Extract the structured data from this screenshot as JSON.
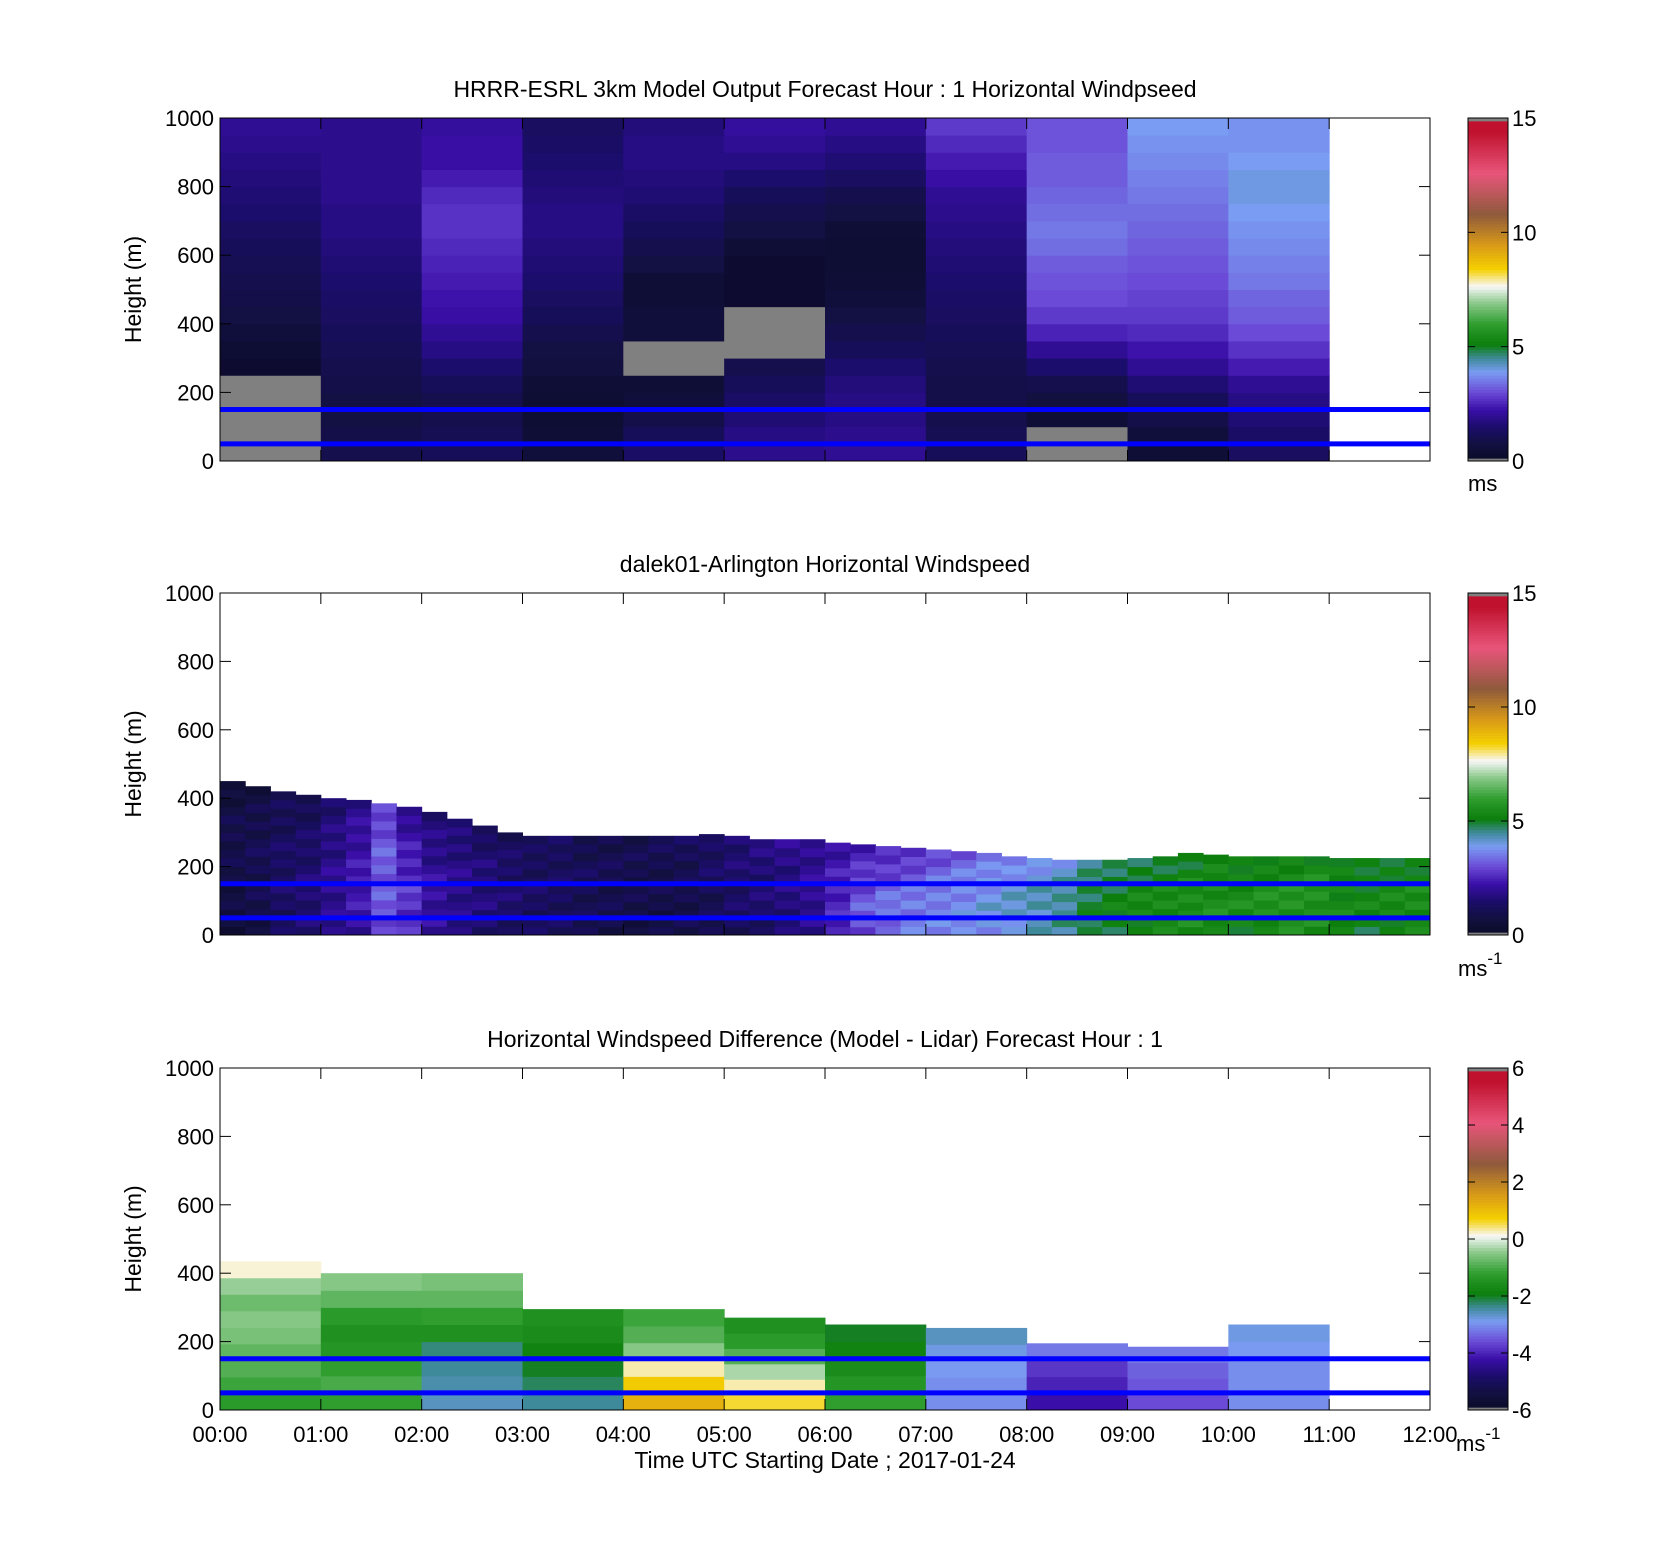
{
  "figure": {
    "xlabel": "Time UTC  Starting Date ; 2017-01-24",
    "xticks": [
      "00:00",
      "01:00",
      "02:00",
      "03:00",
      "04:00",
      "05:00",
      "06:00",
      "07:00",
      "08:00",
      "09:00",
      "10:00",
      "11:00",
      "12:00"
    ]
  },
  "colors": {
    "reference_line": "#0000ff",
    "missing": "#808080"
  },
  "chart_data": [
    {
      "type": "heatmap",
      "title": "HRRR-ESRL 3km Model Output   Forecast Hour : 1 Horizontal Windpseed",
      "ylabel": "Height (m)",
      "ylim": [
        0,
        1000
      ],
      "yticks": [
        "0",
        "200",
        "400",
        "600",
        "800",
        "1000"
      ],
      "xlim_hours": [
        0,
        12
      ],
      "colorbar": {
        "range": [
          0,
          15
        ],
        "ticks": [
          "0",
          "5",
          "10",
          "15"
        ],
        "unit": "ms"
      },
      "reference_lines_m": [
        150,
        50
      ],
      "heights_m": [
        25,
        75,
        125,
        175,
        225,
        275,
        325,
        375,
        425,
        475,
        525,
        575,
        625,
        675,
        725,
        775,
        825,
        875,
        925,
        975
      ],
      "columns": [
        {
          "hour": "00:00",
          "values": [
            null,
            null,
            null,
            null,
            null,
            0.3,
            0.4,
            0.6,
            0.8,
            0.9,
            1.0,
            1.1,
            1.2,
            1.3,
            1.5,
            1.6,
            1.7,
            1.8,
            1.9,
            2.0
          ]
        },
        {
          "hour": "01:00",
          "values": [
            1.0,
            0.9,
            0.8,
            0.8,
            0.9,
            1.0,
            1.1,
            1.2,
            1.3,
            1.4,
            1.5,
            1.6,
            1.7,
            1.8,
            1.8,
            1.9,
            1.9,
            1.9,
            1.9,
            1.9
          ]
        },
        {
          "hour": "02:00",
          "values": [
            1.2,
            1.1,
            1.0,
            1.0,
            1.2,
            1.5,
            1.8,
            2.0,
            2.2,
            2.3,
            2.4,
            2.5,
            2.6,
            2.7,
            2.7,
            2.6,
            2.4,
            2.2,
            2.2,
            2.1
          ]
        },
        {
          "hour": "03:00",
          "values": [
            0.6,
            0.5,
            0.4,
            0.4,
            0.5,
            0.7,
            0.8,
            1.0,
            1.2,
            1.3,
            1.5,
            1.6,
            1.7,
            1.8,
            1.8,
            1.7,
            1.6,
            1.5,
            1.4,
            1.3
          ]
        },
        {
          "hour": "04:00",
          "values": [
            1.4,
            1.2,
            0.9,
            0.6,
            0.5,
            null,
            null,
            0.6,
            0.6,
            0.5,
            0.5,
            0.8,
            1.0,
            1.2,
            1.4,
            1.6,
            1.7,
            1.8,
            1.8,
            1.7
          ]
        },
        {
          "hour": "05:00",
          "values": [
            1.9,
            1.8,
            1.6,
            1.4,
            1.2,
            1.0,
            null,
            null,
            null,
            0.3,
            0.3,
            0.3,
            0.5,
            0.8,
            1.0,
            1.2,
            1.5,
            1.8,
            2.0,
            2.1
          ]
        },
        {
          "hour": "06:00",
          "values": [
            2.0,
            1.9,
            1.8,
            1.8,
            1.7,
            1.5,
            1.2,
            1.0,
            0.8,
            0.6,
            0.5,
            0.4,
            0.4,
            0.5,
            0.8,
            1.0,
            1.3,
            1.6,
            1.8,
            2.0
          ]
        },
        {
          "hour": "07:00",
          "values": [
            1.2,
            1.1,
            1.0,
            0.9,
            0.9,
            1.0,
            1.1,
            1.2,
            1.3,
            1.4,
            1.5,
            1.6,
            1.7,
            1.8,
            1.9,
            2.0,
            2.2,
            2.4,
            2.6,
            2.8
          ]
        },
        {
          "hour": "08:00",
          "values": [
            null,
            null,
            0.5,
            0.7,
            1.0,
            1.5,
            2.0,
            2.5,
            2.8,
            3.0,
            3.1,
            3.2,
            3.4,
            3.5,
            3.4,
            3.3,
            3.2,
            3.2,
            3.1,
            3.1
          ]
        },
        {
          "hour": "09:00",
          "values": [
            0.5,
            0.6,
            0.9,
            1.2,
            1.6,
            2.0,
            2.3,
            2.6,
            2.8,
            2.9,
            3.0,
            3.1,
            3.2,
            3.3,
            3.4,
            3.5,
            3.6,
            3.7,
            3.8,
            3.9
          ]
        },
        {
          "hour": "10:00",
          "values": [
            1.3,
            1.4,
            1.6,
            1.8,
            2.0,
            2.4,
            2.7,
            3.0,
            3.2,
            3.3,
            3.5,
            3.6,
            3.7,
            3.8,
            3.9,
            4.0,
            4.0,
            3.9,
            3.8,
            3.8
          ]
        }
      ]
    },
    {
      "type": "heatmap",
      "title": "dalek01-Arlington  Horizontal Windspeed",
      "ylabel": "Height (m)",
      "ylim": [
        0,
        1000
      ],
      "yticks": [
        "0",
        "200",
        "400",
        "600",
        "800",
        "1000"
      ],
      "xlim_hours": [
        0,
        12
      ],
      "colorbar": {
        "range": [
          0,
          15
        ],
        "ticks": [
          "0",
          "5",
          "10",
          "15"
        ],
        "unit": "ms",
        "unit_exp": "-1"
      },
      "reference_lines_m": [
        150,
        50
      ],
      "profile_time_step_hours": 0.25,
      "profile_tops_m": [
        450,
        435,
        420,
        410,
        400,
        395,
        385,
        375,
        360,
        340,
        320,
        300,
        290,
        290,
        290,
        290,
        290,
        290,
        290,
        295,
        290,
        280,
        280,
        280,
        270,
        265,
        260,
        255,
        250,
        245,
        240,
        230,
        225,
        220,
        220,
        220,
        225,
        230,
        240,
        235,
        230,
        230,
        230,
        230,
        225,
        225,
        225,
        225
      ],
      "profile_speeds_bottom_top": [
        [
          0.6,
          0.8,
          1.0,
          0.6
        ],
        [
          0.8,
          1.0,
          1.1,
          0.7
        ],
        [
          1.2,
          1.4,
          1.3,
          1.0
        ],
        [
          1.5,
          1.6,
          1.4,
          1.1
        ],
        [
          1.8,
          2.0,
          1.8,
          1.5
        ],
        [
          2.1,
          2.4,
          2.2,
          1.9
        ],
        [
          3.0,
          3.2,
          3.2,
          2.8
        ],
        [
          2.6,
          2.8,
          2.4,
          2.0
        ],
        [
          2.0,
          2.2,
          1.9,
          1.6
        ],
        [
          1.7,
          1.9,
          1.8,
          1.5
        ],
        [
          1.5,
          1.7,
          1.6,
          1.3
        ],
        [
          1.3,
          1.5,
          1.4,
          1.2
        ],
        [
          1.2,
          1.3,
          1.3,
          1.1
        ],
        [
          1.2,
          1.3,
          1.3,
          1.2
        ],
        [
          1.0,
          1.1,
          1.2,
          1.0
        ],
        [
          0.9,
          1.0,
          1.1,
          1.0
        ],
        [
          0.8,
          0.9,
          1.0,
          1.0
        ],
        [
          0.8,
          0.9,
          1.0,
          1.1
        ],
        [
          0.9,
          1.0,
          1.1,
          1.2
        ],
        [
          1.0,
          1.1,
          1.3,
          1.4
        ],
        [
          1.2,
          1.4,
          1.5,
          1.6
        ],
        [
          1.3,
          1.5,
          1.6,
          1.7
        ],
        [
          1.5,
          1.7,
          1.8,
          1.9
        ],
        [
          1.8,
          2.0,
          2.0,
          2.0
        ],
        [
          2.4,
          2.6,
          2.4,
          2.2
        ],
        [
          3.0,
          3.2,
          2.8,
          2.4
        ],
        [
          3.3,
          3.5,
          3.0,
          2.5
        ],
        [
          3.5,
          3.6,
          3.2,
          2.7
        ],
        [
          3.6,
          3.7,
          3.4,
          3.0
        ],
        [
          3.7,
          3.8,
          3.6,
          3.2
        ],
        [
          3.8,
          4.0,
          3.8,
          3.4
        ],
        [
          4.0,
          4.2,
          4.0,
          3.6
        ],
        [
          4.2,
          4.4,
          4.2,
          3.8
        ],
        [
          4.4,
          4.6,
          4.4,
          4.0
        ],
        [
          4.8,
          5.0,
          4.8,
          4.4
        ],
        [
          5.0,
          5.2,
          5.0,
          4.6
        ],
        [
          5.2,
          5.4,
          5.2,
          4.8
        ],
        [
          5.3,
          5.5,
          5.3,
          4.9
        ],
        [
          5.4,
          5.6,
          5.4,
          5.0
        ],
        [
          5.3,
          5.6,
          5.5,
          5.1
        ],
        [
          5.2,
          5.5,
          5.4,
          5.0
        ],
        [
          5.4,
          5.6,
          5.5,
          5.2
        ],
        [
          5.5,
          5.7,
          5.6,
          5.3
        ],
        [
          5.4,
          5.7,
          5.6,
          5.3
        ],
        [
          5.2,
          5.4,
          5.3,
          5.0
        ],
        [
          5.0,
          5.3,
          5.2,
          4.9
        ],
        [
          5.2,
          5.4,
          5.3,
          5.0
        ],
        [
          5.3,
          5.5,
          5.4,
          5.1
        ]
      ]
    },
    {
      "type": "heatmap",
      "title": "Horizontal Windspeed Difference (Model - Lidar) Forecast Hour : 1",
      "ylabel": "Height (m)",
      "ylim": [
        0,
        1000
      ],
      "yticks": [
        "0",
        "200",
        "400",
        "600",
        "800",
        "1000"
      ],
      "xlim_hours": [
        0,
        12
      ],
      "colorbar": {
        "range": [
          -6,
          6
        ],
        "ticks": [
          "-6",
          "-4",
          "-2",
          "0",
          "2",
          "4",
          "6"
        ],
        "unit": "ms",
        "unit_exp": "-1"
      },
      "reference_lines_m": [
        150,
        50
      ],
      "columns": [
        {
          "hour": "00:00",
          "top_m": 435,
          "values_bottom_top": [
            -1.3,
            -1.1,
            -0.9,
            -0.8,
            -0.6,
            -0.5,
            -0.7,
            -0.4,
            0.2
          ]
        },
        {
          "hour": "01:00",
          "top_m": 400,
          "values_bottom_top": [
            -1.2,
            -1.0,
            -1.2,
            -1.4,
            -1.5,
            -1.3,
            -0.8,
            -0.5
          ]
        },
        {
          "hour": "02:00",
          "top_m": 400,
          "values_bottom_top": [
            -2.6,
            -2.5,
            -2.4,
            -2.3,
            -1.5,
            -1.2,
            -0.8,
            -0.6
          ]
        },
        {
          "hour": "03:00",
          "top_m": 295,
          "values_bottom_top": [
            -2.4,
            -2.2,
            -2.0,
            -1.8,
            -1.6,
            -1.5
          ]
        },
        {
          "hour": "04:00",
          "top_m": 295,
          "values_bottom_top": [
            1.2,
            0.8,
            0.3,
            -0.5,
            -0.9,
            -1.1
          ]
        },
        {
          "hour": "05:00",
          "top_m": 270,
          "values_bottom_top": [
            0.6,
            0.3,
            -0.3,
            -0.9,
            -1.3,
            -1.5
          ]
        },
        {
          "hour": "06:00",
          "top_m": 250,
          "values_bottom_top": [
            -1.2,
            -1.4,
            -1.6,
            -1.8,
            -2.0
          ]
        },
        {
          "hour": "07:00",
          "top_m": 240,
          "values_bottom_top": [
            -3.0,
            -3.0,
            -2.9,
            -2.8,
            -2.6
          ]
        },
        {
          "hour": "08:00",
          "top_m": 195,
          "values_bottom_top": [
            -4.2,
            -4.0,
            -3.8,
            -3.2
          ]
        },
        {
          "hour": "09:00",
          "top_m": 185,
          "values_bottom_top": [
            -3.6,
            -3.5,
            -3.4,
            -3.2
          ]
        },
        {
          "hour": "10:00",
          "top_m": 250,
          "values_bottom_top": [
            -3.0,
            -3.0,
            -3.0,
            -2.9,
            -2.8
          ]
        }
      ]
    }
  ]
}
